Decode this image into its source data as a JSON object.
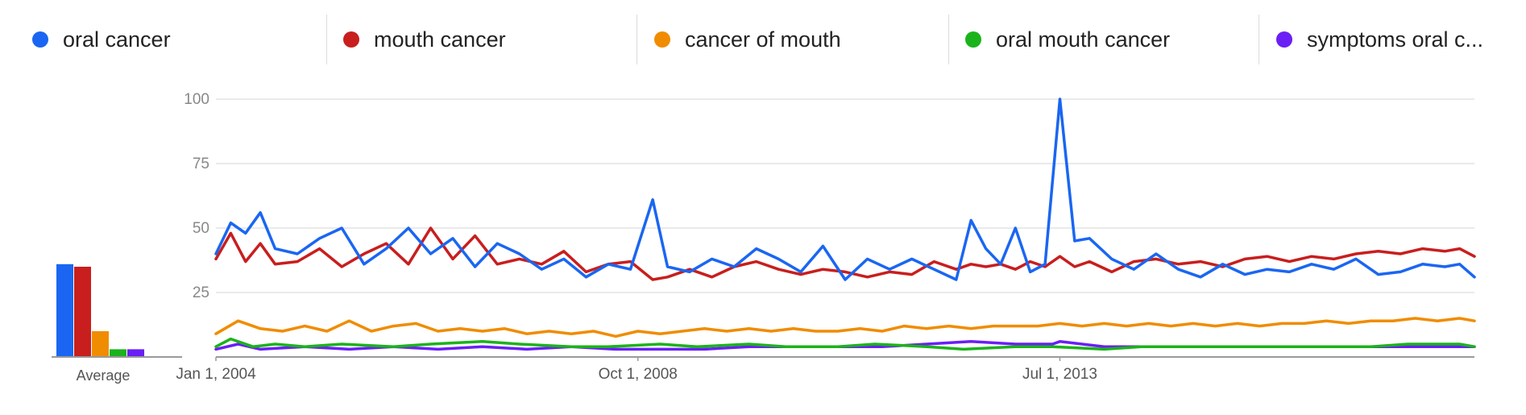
{
  "legend": [
    {
      "label": "oral cancer",
      "color": "#1a66f2"
    },
    {
      "label": "mouth cancer",
      "color": "#c81e1e"
    },
    {
      "label": "cancer of mouth",
      "color": "#f08c00"
    },
    {
      "label": "oral mouth cancer",
      "color": "#1bb31b"
    },
    {
      "label": "symptoms oral c...",
      "color": "#6a1ff5"
    }
  ],
  "chart_data": {
    "type": "line",
    "title": "",
    "xlabel": "",
    "ylabel": "",
    "x_range": [
      "2004-01",
      "2018-03"
    ],
    "x_ticks": [
      "Jan 1, 2004",
      "Oct 1, 2008",
      "Jul 1, 2013"
    ],
    "ylim": [
      0,
      100
    ],
    "y_ticks": [
      25,
      50,
      75,
      100
    ],
    "grid": true,
    "legend_placement": "top",
    "series": [
      {
        "name": "oral cancer",
        "color": "#1a66f2",
        "values": [
          {
            "x": "2004-01",
            "y": 40
          },
          {
            "x": "2004-03",
            "y": 52
          },
          {
            "x": "2004-05",
            "y": 48
          },
          {
            "x": "2004-07",
            "y": 56
          },
          {
            "x": "2004-09",
            "y": 42
          },
          {
            "x": "2004-12",
            "y": 40
          },
          {
            "x": "2005-03",
            "y": 46
          },
          {
            "x": "2005-06",
            "y": 50
          },
          {
            "x": "2005-09",
            "y": 36
          },
          {
            "x": "2005-12",
            "y": 42
          },
          {
            "x": "2006-03",
            "y": 50
          },
          {
            "x": "2006-06",
            "y": 40
          },
          {
            "x": "2006-09",
            "y": 46
          },
          {
            "x": "2006-12",
            "y": 35
          },
          {
            "x": "2007-03",
            "y": 44
          },
          {
            "x": "2007-06",
            "y": 40
          },
          {
            "x": "2007-09",
            "y": 34
          },
          {
            "x": "2007-12",
            "y": 38
          },
          {
            "x": "2008-03",
            "y": 31
          },
          {
            "x": "2008-06",
            "y": 36
          },
          {
            "x": "2008-09",
            "y": 34
          },
          {
            "x": "2008-12",
            "y": 61
          },
          {
            "x": "2009-02",
            "y": 35
          },
          {
            "x": "2009-05",
            "y": 33
          },
          {
            "x": "2009-08",
            "y": 38
          },
          {
            "x": "2009-11",
            "y": 35
          },
          {
            "x": "2010-02",
            "y": 42
          },
          {
            "x": "2010-05",
            "y": 38
          },
          {
            "x": "2010-08",
            "y": 33
          },
          {
            "x": "2010-11",
            "y": 43
          },
          {
            "x": "2011-02",
            "y": 30
          },
          {
            "x": "2011-05",
            "y": 38
          },
          {
            "x": "2011-08",
            "y": 34
          },
          {
            "x": "2011-11",
            "y": 38
          },
          {
            "x": "2012-02",
            "y": 34
          },
          {
            "x": "2012-05",
            "y": 30
          },
          {
            "x": "2012-07",
            "y": 53
          },
          {
            "x": "2012-09",
            "y": 42
          },
          {
            "x": "2012-11",
            "y": 36
          },
          {
            "x": "2013-01",
            "y": 50
          },
          {
            "x": "2013-03",
            "y": 33
          },
          {
            "x": "2013-05",
            "y": 36
          },
          {
            "x": "2013-07",
            "y": 100
          },
          {
            "x": "2013-09",
            "y": 45
          },
          {
            "x": "2013-11",
            "y": 46
          },
          {
            "x": "2014-02",
            "y": 38
          },
          {
            "x": "2014-05",
            "y": 34
          },
          {
            "x": "2014-08",
            "y": 40
          },
          {
            "x": "2014-11",
            "y": 34
          },
          {
            "x": "2015-02",
            "y": 31
          },
          {
            "x": "2015-05",
            "y": 36
          },
          {
            "x": "2015-08",
            "y": 32
          },
          {
            "x": "2015-11",
            "y": 34
          },
          {
            "x": "2016-02",
            "y": 33
          },
          {
            "x": "2016-05",
            "y": 36
          },
          {
            "x": "2016-08",
            "y": 34
          },
          {
            "x": "2016-11",
            "y": 38
          },
          {
            "x": "2017-02",
            "y": 32
          },
          {
            "x": "2017-05",
            "y": 33
          },
          {
            "x": "2017-08",
            "y": 36
          },
          {
            "x": "2017-11",
            "y": 35
          },
          {
            "x": "2018-01",
            "y": 36
          },
          {
            "x": "2018-03",
            "y": 31
          }
        ]
      },
      {
        "name": "mouth cancer",
        "color": "#c81e1e",
        "values": [
          {
            "x": "2004-01",
            "y": 38
          },
          {
            "x": "2004-03",
            "y": 48
          },
          {
            "x": "2004-05",
            "y": 37
          },
          {
            "x": "2004-07",
            "y": 44
          },
          {
            "x": "2004-09",
            "y": 36
          },
          {
            "x": "2004-12",
            "y": 37
          },
          {
            "x": "2005-03",
            "y": 42
          },
          {
            "x": "2005-06",
            "y": 35
          },
          {
            "x": "2005-09",
            "y": 40
          },
          {
            "x": "2005-12",
            "y": 44
          },
          {
            "x": "2006-03",
            "y": 36
          },
          {
            "x": "2006-06",
            "y": 50
          },
          {
            "x": "2006-09",
            "y": 38
          },
          {
            "x": "2006-12",
            "y": 47
          },
          {
            "x": "2007-03",
            "y": 36
          },
          {
            "x": "2007-06",
            "y": 38
          },
          {
            "x": "2007-09",
            "y": 36
          },
          {
            "x": "2007-12",
            "y": 41
          },
          {
            "x": "2008-03",
            "y": 33
          },
          {
            "x": "2008-06",
            "y": 36
          },
          {
            "x": "2008-09",
            "y": 37
          },
          {
            "x": "2008-12",
            "y": 30
          },
          {
            "x": "2009-02",
            "y": 31
          },
          {
            "x": "2009-05",
            "y": 34
          },
          {
            "x": "2009-08",
            "y": 31
          },
          {
            "x": "2009-11",
            "y": 35
          },
          {
            "x": "2010-02",
            "y": 37
          },
          {
            "x": "2010-05",
            "y": 34
          },
          {
            "x": "2010-08",
            "y": 32
          },
          {
            "x": "2010-11",
            "y": 34
          },
          {
            "x": "2011-02",
            "y": 33
          },
          {
            "x": "2011-05",
            "y": 31
          },
          {
            "x": "2011-08",
            "y": 33
          },
          {
            "x": "2011-11",
            "y": 32
          },
          {
            "x": "2012-02",
            "y": 37
          },
          {
            "x": "2012-05",
            "y": 34
          },
          {
            "x": "2012-07",
            "y": 36
          },
          {
            "x": "2012-09",
            "y": 35
          },
          {
            "x": "2012-11",
            "y": 36
          },
          {
            "x": "2013-01",
            "y": 34
          },
          {
            "x": "2013-03",
            "y": 37
          },
          {
            "x": "2013-05",
            "y": 35
          },
          {
            "x": "2013-07",
            "y": 39
          },
          {
            "x": "2013-09",
            "y": 35
          },
          {
            "x": "2013-11",
            "y": 37
          },
          {
            "x": "2014-02",
            "y": 33
          },
          {
            "x": "2014-05",
            "y": 37
          },
          {
            "x": "2014-08",
            "y": 38
          },
          {
            "x": "2014-11",
            "y": 36
          },
          {
            "x": "2015-02",
            "y": 37
          },
          {
            "x": "2015-05",
            "y": 35
          },
          {
            "x": "2015-08",
            "y": 38
          },
          {
            "x": "2015-11",
            "y": 39
          },
          {
            "x": "2016-02",
            "y": 37
          },
          {
            "x": "2016-05",
            "y": 39
          },
          {
            "x": "2016-08",
            "y": 38
          },
          {
            "x": "2016-11",
            "y": 40
          },
          {
            "x": "2017-02",
            "y": 41
          },
          {
            "x": "2017-05",
            "y": 40
          },
          {
            "x": "2017-08",
            "y": 42
          },
          {
            "x": "2017-11",
            "y": 41
          },
          {
            "x": "2018-01",
            "y": 42
          },
          {
            "x": "2018-03",
            "y": 39
          }
        ]
      },
      {
        "name": "cancer of mouth",
        "color": "#f08c00",
        "values": [
          {
            "x": "2004-01",
            "y": 9
          },
          {
            "x": "2004-04",
            "y": 14
          },
          {
            "x": "2004-07",
            "y": 11
          },
          {
            "x": "2004-10",
            "y": 10
          },
          {
            "x": "2005-01",
            "y": 12
          },
          {
            "x": "2005-04",
            "y": 10
          },
          {
            "x": "2005-07",
            "y": 14
          },
          {
            "x": "2005-10",
            "y": 10
          },
          {
            "x": "2006-01",
            "y": 12
          },
          {
            "x": "2006-04",
            "y": 13
          },
          {
            "x": "2006-07",
            "y": 10
          },
          {
            "x": "2006-10",
            "y": 11
          },
          {
            "x": "2007-01",
            "y": 10
          },
          {
            "x": "2007-04",
            "y": 11
          },
          {
            "x": "2007-07",
            "y": 9
          },
          {
            "x": "2007-10",
            "y": 10
          },
          {
            "x": "2008-01",
            "y": 9
          },
          {
            "x": "2008-04",
            "y": 10
          },
          {
            "x": "2008-07",
            "y": 8
          },
          {
            "x": "2008-10",
            "y": 10
          },
          {
            "x": "2009-01",
            "y": 9
          },
          {
            "x": "2009-04",
            "y": 10
          },
          {
            "x": "2009-07",
            "y": 11
          },
          {
            "x": "2009-10",
            "y": 10
          },
          {
            "x": "2010-01",
            "y": 11
          },
          {
            "x": "2010-04",
            "y": 10
          },
          {
            "x": "2010-07",
            "y": 11
          },
          {
            "x": "2010-10",
            "y": 10
          },
          {
            "x": "2011-01",
            "y": 10
          },
          {
            "x": "2011-04",
            "y": 11
          },
          {
            "x": "2011-07",
            "y": 10
          },
          {
            "x": "2011-10",
            "y": 12
          },
          {
            "x": "2012-01",
            "y": 11
          },
          {
            "x": "2012-04",
            "y": 12
          },
          {
            "x": "2012-07",
            "y": 11
          },
          {
            "x": "2012-10",
            "y": 12
          },
          {
            "x": "2013-01",
            "y": 12
          },
          {
            "x": "2013-04",
            "y": 12
          },
          {
            "x": "2013-07",
            "y": 13
          },
          {
            "x": "2013-10",
            "y": 12
          },
          {
            "x": "2014-01",
            "y": 13
          },
          {
            "x": "2014-04",
            "y": 12
          },
          {
            "x": "2014-07",
            "y": 13
          },
          {
            "x": "2014-10",
            "y": 12
          },
          {
            "x": "2015-01",
            "y": 13
          },
          {
            "x": "2015-04",
            "y": 12
          },
          {
            "x": "2015-07",
            "y": 13
          },
          {
            "x": "2015-10",
            "y": 12
          },
          {
            "x": "2016-01",
            "y": 13
          },
          {
            "x": "2016-04",
            "y": 13
          },
          {
            "x": "2016-07",
            "y": 14
          },
          {
            "x": "2016-10",
            "y": 13
          },
          {
            "x": "2017-01",
            "y": 14
          },
          {
            "x": "2017-04",
            "y": 14
          },
          {
            "x": "2017-07",
            "y": 15
          },
          {
            "x": "2017-10",
            "y": 14
          },
          {
            "x": "2018-01",
            "y": 15
          },
          {
            "x": "2018-03",
            "y": 14
          }
        ]
      },
      {
        "name": "oral mouth cancer",
        "color": "#1bb31b",
        "values": [
          {
            "x": "2004-01",
            "y": 4
          },
          {
            "x": "2004-03",
            "y": 7
          },
          {
            "x": "2004-06",
            "y": 4
          },
          {
            "x": "2004-09",
            "y": 5
          },
          {
            "x": "2005-01",
            "y": 4
          },
          {
            "x": "2005-06",
            "y": 5
          },
          {
            "x": "2006-01",
            "y": 4
          },
          {
            "x": "2006-06",
            "y": 5
          },
          {
            "x": "2007-01",
            "y": 6
          },
          {
            "x": "2007-06",
            "y": 5
          },
          {
            "x": "2008-01",
            "y": 4
          },
          {
            "x": "2008-06",
            "y": 4
          },
          {
            "x": "2009-01",
            "y": 5
          },
          {
            "x": "2009-06",
            "y": 4
          },
          {
            "x": "2010-01",
            "y": 5
          },
          {
            "x": "2010-06",
            "y": 4
          },
          {
            "x": "2011-01",
            "y": 4
          },
          {
            "x": "2011-06",
            "y": 5
          },
          {
            "x": "2012-01",
            "y": 4
          },
          {
            "x": "2012-06",
            "y": 3
          },
          {
            "x": "2013-01",
            "y": 4
          },
          {
            "x": "2013-06",
            "y": 4
          },
          {
            "x": "2014-01",
            "y": 3
          },
          {
            "x": "2014-06",
            "y": 4
          },
          {
            "x": "2015-01",
            "y": 4
          },
          {
            "x": "2015-06",
            "y": 4
          },
          {
            "x": "2016-01",
            "y": 4
          },
          {
            "x": "2016-06",
            "y": 4
          },
          {
            "x": "2017-01",
            "y": 4
          },
          {
            "x": "2017-06",
            "y": 5
          },
          {
            "x": "2018-01",
            "y": 5
          },
          {
            "x": "2018-03",
            "y": 4
          }
        ]
      },
      {
        "name": "symptoms oral c...",
        "color": "#6a1ff5",
        "values": [
          {
            "x": "2004-01",
            "y": 3
          },
          {
            "x": "2004-04",
            "y": 5
          },
          {
            "x": "2004-07",
            "y": 3
          },
          {
            "x": "2005-01",
            "y": 4
          },
          {
            "x": "2005-07",
            "y": 3
          },
          {
            "x": "2006-01",
            "y": 4
          },
          {
            "x": "2006-07",
            "y": 3
          },
          {
            "x": "2007-01",
            "y": 4
          },
          {
            "x": "2007-07",
            "y": 3
          },
          {
            "x": "2008-01",
            "y": 4
          },
          {
            "x": "2008-07",
            "y": 3
          },
          {
            "x": "2009-01",
            "y": 3
          },
          {
            "x": "2009-07",
            "y": 3
          },
          {
            "x": "2010-01",
            "y": 4
          },
          {
            "x": "2010-07",
            "y": 4
          },
          {
            "x": "2011-01",
            "y": 4
          },
          {
            "x": "2011-07",
            "y": 4
          },
          {
            "x": "2012-01",
            "y": 5
          },
          {
            "x": "2012-07",
            "y": 6
          },
          {
            "x": "2013-01",
            "y": 5
          },
          {
            "x": "2013-06",
            "y": 5
          },
          {
            "x": "2013-07",
            "y": 6
          },
          {
            "x": "2014-01",
            "y": 4
          },
          {
            "x": "2014-07",
            "y": 4
          },
          {
            "x": "2015-01",
            "y": 4
          },
          {
            "x": "2015-07",
            "y": 4
          },
          {
            "x": "2016-01",
            "y": 4
          },
          {
            "x": "2016-07",
            "y": 4
          },
          {
            "x": "2017-01",
            "y": 4
          },
          {
            "x": "2017-07",
            "y": 4
          },
          {
            "x": "2018-01",
            "y": 4
          },
          {
            "x": "2018-03",
            "y": 4
          }
        ]
      }
    ],
    "average": {
      "label": "Average",
      "values": [
        36,
        35,
        10,
        3,
        3
      ]
    }
  }
}
